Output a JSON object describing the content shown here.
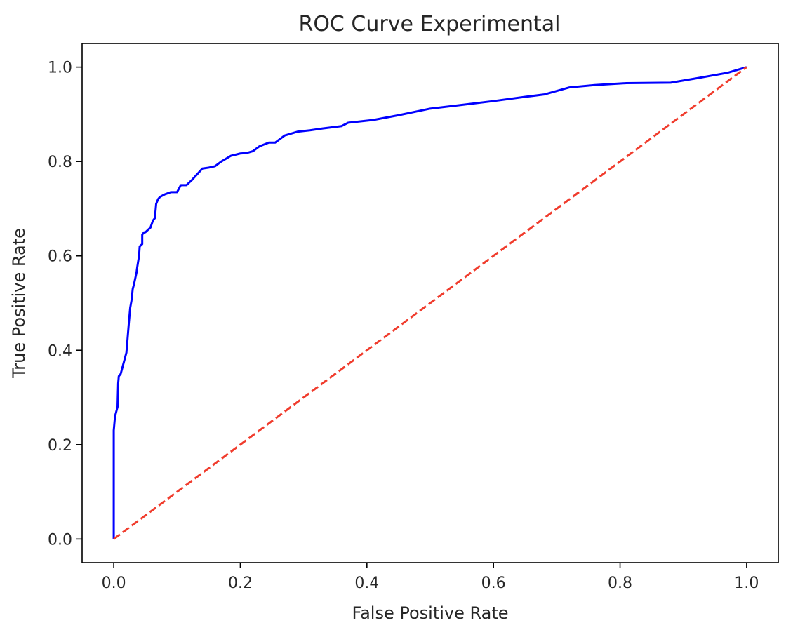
{
  "chart_data": {
    "type": "line",
    "title": "ROC Curve Experimental",
    "xlabel": "False Positive Rate",
    "ylabel": "True Positive Rate",
    "xlim": [
      -0.05,
      1.05
    ],
    "ylim": [
      -0.05,
      1.05
    ],
    "xticks": [
      0.0,
      0.2,
      0.4,
      0.6,
      0.8,
      1.0
    ],
    "yticks": [
      0.0,
      0.2,
      0.4,
      0.6,
      0.8,
      1.0
    ],
    "xtick_labels": [
      "0.0",
      "0.2",
      "0.4",
      "0.6",
      "0.8",
      "1.0"
    ],
    "ytick_labels": [
      "0.0",
      "0.2",
      "0.4",
      "0.6",
      "0.8",
      "1.0"
    ],
    "grid": false,
    "legend": "none",
    "series": [
      {
        "color": "#0000ff",
        "style": "solid",
        "x": [
          0.0,
          0.0,
          0.002,
          0.006,
          0.007,
          0.008,
          0.011,
          0.015,
          0.017,
          0.02,
          0.024,
          0.026,
          0.028,
          0.03,
          0.032,
          0.036,
          0.037,
          0.04,
          0.041,
          0.045,
          0.045,
          0.048,
          0.05,
          0.058,
          0.062,
          0.065,
          0.067,
          0.07,
          0.073,
          0.08,
          0.09,
          0.1,
          0.104,
          0.106,
          0.115,
          0.123,
          0.14,
          0.15,
          0.16,
          0.17,
          0.185,
          0.2,
          0.21,
          0.22,
          0.23,
          0.245,
          0.255,
          0.27,
          0.29,
          0.31,
          0.33,
          0.36,
          0.37,
          0.41,
          0.45,
          0.5,
          0.55,
          0.6,
          0.65,
          0.68,
          0.72,
          0.76,
          0.81,
          0.88,
          0.92,
          0.97,
          1.0
        ],
        "y": [
          0.0,
          0.23,
          0.26,
          0.28,
          0.33,
          0.345,
          0.35,
          0.37,
          0.38,
          0.395,
          0.46,
          0.49,
          0.505,
          0.53,
          0.54,
          0.565,
          0.575,
          0.6,
          0.62,
          0.625,
          0.645,
          0.65,
          0.65,
          0.66,
          0.675,
          0.68,
          0.71,
          0.72,
          0.725,
          0.73,
          0.735,
          0.735,
          0.745,
          0.75,
          0.75,
          0.76,
          0.785,
          0.787,
          0.79,
          0.8,
          0.812,
          0.817,
          0.818,
          0.822,
          0.832,
          0.84,
          0.84,
          0.855,
          0.863,
          0.866,
          0.87,
          0.875,
          0.882,
          0.888,
          0.898,
          0.912,
          0.92,
          0.928,
          0.937,
          0.942,
          0.957,
          0.962,
          0.966,
          0.967,
          0.976,
          0.988,
          1.0
        ]
      },
      {
        "color": "#f03c2d",
        "style": "dashed",
        "x": [
          0.0,
          1.0
        ],
        "y": [
          0.0,
          1.0
        ]
      }
    ]
  }
}
